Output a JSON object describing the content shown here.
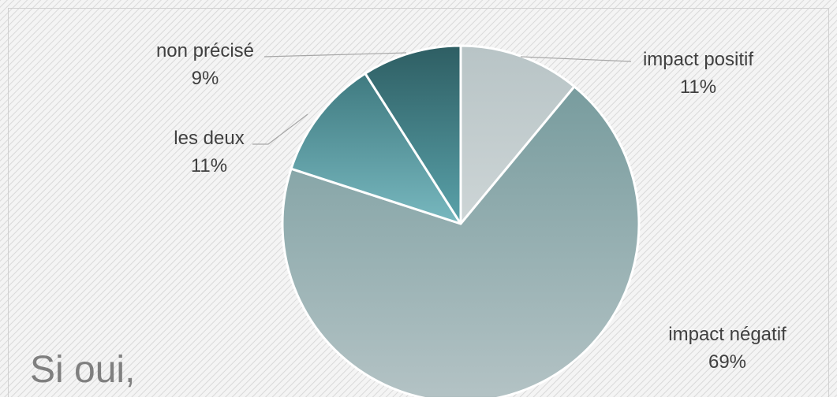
{
  "chart_data": {
    "type": "pie",
    "caption": "Si oui,",
    "slices": [
      {
        "label": "impact positif",
        "value": 11,
        "value_label": "11%",
        "color": "#c2ccce"
      },
      {
        "label": "impact négatif",
        "value": 69,
        "value_label": "69%",
        "color": "#93abad"
      },
      {
        "label": "les deux",
        "value": 11,
        "value_label": "11%",
        "color": "#5d9ea6"
      },
      {
        "label": "non précisé",
        "value": 9,
        "value_label": "9%",
        "color": "#3c6d72"
      }
    ],
    "start": "12 o'clock",
    "direction": "clockwise",
    "legend": "none",
    "background": "diagonal-stripes"
  }
}
